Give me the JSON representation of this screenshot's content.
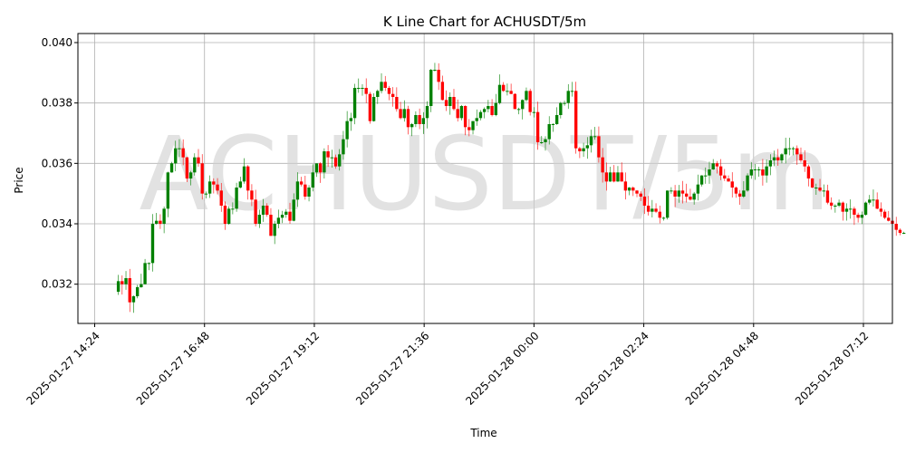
{
  "chart_data": {
    "type": "candlestick",
    "title": "K Line Chart for ACHUSDT/5m",
    "xlabel": "Time",
    "ylabel": "Price",
    "watermark": "ACHUSDT/5m",
    "ylim": [
      0.0307,
      0.0403
    ],
    "xlim": [
      "2025-01-27 14:02",
      "2025-01-28 07:50"
    ],
    "y_ticks": [
      {
        "value": 0.032,
        "label": "0.032"
      },
      {
        "value": 0.034,
        "label": "0.034"
      },
      {
        "value": 0.036,
        "label": "0.036"
      },
      {
        "value": 0.038,
        "label": "0.038"
      },
      {
        "value": 0.04,
        "label": "0.040"
      }
    ],
    "x_ticks": [
      {
        "value": "2025-01-27 14:24",
        "label": "2025-01-27 14:24"
      },
      {
        "value": "2025-01-27 16:48",
        "label": "2025-01-27 16:48"
      },
      {
        "value": "2025-01-27 19:12",
        "label": "2025-01-27 19:12"
      },
      {
        "value": "2025-01-27 21:36",
        "label": "2025-01-27 21:36"
      },
      {
        "value": "2025-01-28 00:00",
        "label": "2025-01-28 00:00"
      },
      {
        "value": "2025-01-28 02:24",
        "label": "2025-01-28 02:24"
      },
      {
        "value": "2025-01-28 04:48",
        "label": "2025-01-28 04:48"
      },
      {
        "value": "2025-01-28 07:12",
        "label": "2025-01-28 07:12"
      }
    ],
    "grid": true,
    "interval": "5m",
    "colors": {
      "up": "#008000",
      "down": "#ff0000",
      "grid": "#b0b0b0"
    },
    "series_start": "2025-01-27 14:55",
    "closes": [
      0.0321,
      0.032,
      0.0322,
      0.0314,
      0.0316,
      0.0319,
      0.032,
      0.0327,
      0.0327,
      0.034,
      0.0341,
      0.034,
      0.0345,
      0.0357,
      0.036,
      0.0365,
      0.0365,
      0.0362,
      0.0355,
      0.0357,
      0.0362,
      0.036,
      0.035,
      0.035,
      0.0354,
      0.0353,
      0.0351,
      0.0346,
      0.034,
      0.0345,
      0.0345,
      0.0352,
      0.0354,
      0.0359,
      0.0351,
      0.0348,
      0.034,
      0.0343,
      0.0346,
      0.0343,
      0.0336,
      0.034,
      0.0342,
      0.0343,
      0.0344,
      0.0341,
      0.0348,
      0.0354,
      0.0353,
      0.0349,
      0.0352,
      0.0357,
      0.036,
      0.0357,
      0.0364,
      0.0362,
      0.0362,
      0.0359,
      0.0363,
      0.0368,
      0.0374,
      0.0375,
      0.0385,
      0.0385,
      0.0385,
      0.0383,
      0.0374,
      0.0382,
      0.0384,
      0.0387,
      0.0385,
      0.0383,
      0.0382,
      0.0378,
      0.0375,
      0.0378,
      0.0372,
      0.0373,
      0.0376,
      0.0373,
      0.0375,
      0.0379,
      0.0391,
      0.0391,
      0.0387,
      0.0381,
      0.0379,
      0.0382,
      0.0378,
      0.0375,
      0.0379,
      0.0372,
      0.0371,
      0.0374,
      0.0375,
      0.0377,
      0.0378,
      0.0379,
      0.0376,
      0.038,
      0.0386,
      0.0384,
      0.0384,
      0.0383,
      0.0378,
      0.0378,
      0.0381,
      0.0384,
      0.0377,
      0.0377,
      0.0367,
      0.0367,
      0.0368,
      0.0373,
      0.0373,
      0.0376,
      0.038,
      0.038,
      0.0384,
      0.0384,
      0.0365,
      0.0364,
      0.0365,
      0.0366,
      0.0369,
      0.0369,
      0.0362,
      0.0357,
      0.0354,
      0.0357,
      0.0354,
      0.0357,
      0.0354,
      0.0351,
      0.0352,
      0.0351,
      0.035,
      0.0349,
      0.0346,
      0.0344,
      0.0345,
      0.0344,
      0.0342,
      0.0342,
      0.0351,
      0.0351,
      0.0349,
      0.0351,
      0.035,
      0.0349,
      0.0348,
      0.035,
      0.0353,
      0.0356,
      0.0356,
      0.0358,
      0.036,
      0.0359,
      0.0356,
      0.0355,
      0.0354,
      0.0352,
      0.035,
      0.0349,
      0.0351,
      0.0356,
      0.0358,
      0.0358,
      0.0358,
      0.0356,
      0.0359,
      0.0361,
      0.0362,
      0.0361,
      0.0363,
      0.0365,
      0.0365,
      0.0365,
      0.0363,
      0.0361,
      0.0359,
      0.0355,
      0.0352,
      0.0352,
      0.0351,
      0.0351,
      0.0347,
      0.0346,
      0.0346,
      0.0347,
      0.0344,
      0.0345,
      0.0345,
      0.0343,
      0.0342,
      0.0343,
      0.0347,
      0.0348,
      0.0348,
      0.0345,
      0.0344,
      0.0342,
      0.0341,
      0.034,
      0.0338,
      0.0337,
      0.0337,
      0.0338,
      0.0337,
      0.0336,
      0.0335,
      0.0336,
      0.0336,
      0.0337,
      0.0338,
      0.0341,
      0.0343,
      0.0344,
      0.0342,
      0.0337,
      0.0337,
      0.0337
    ]
  }
}
